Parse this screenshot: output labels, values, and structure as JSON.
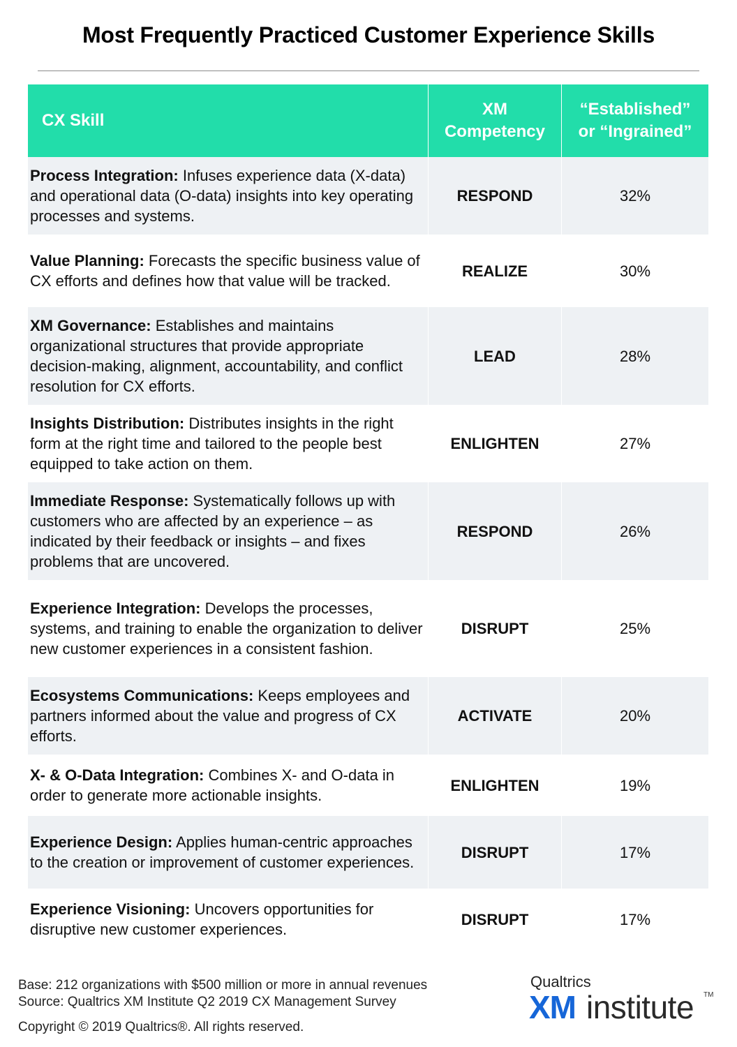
{
  "title": "Most Frequently Practiced Customer Experience Skills",
  "table": {
    "headers": {
      "skill": "CX Skill",
      "competency_line1": "XM",
      "competency_line2": "Competency",
      "established_line1": "“Established”",
      "established_line2": "or “Ingrained”"
    },
    "rows": [
      {
        "name": "Process Integration:",
        "description": " Infuses experience data (X-data) and operational data (O-data) insights into key operating processes and systems.",
        "competency": "RESPOND",
        "percent": "32%"
      },
      {
        "name": "Value Planning:",
        "description": " Forecasts the specific business value of CX efforts and defines how that value will be tracked.",
        "competency": "REALIZE",
        "percent": "30%"
      },
      {
        "name": "XM Governance:",
        "description": " Establishes and maintains organizational structures that provide appropriate decision-making, alignment, accountability, and conflict resolution for CX efforts.",
        "competency": "LEAD",
        "percent": "28%"
      },
      {
        "name": "Insights Distribution:",
        "description": " Distributes insights in the right form at the right time and tailored to the people best equipped to take action on them.",
        "competency": "ENLIGHTEN",
        "percent": "27%"
      },
      {
        "name": "Immediate Response:",
        "description": " Systematically follows up with customers who are affected by an experience – as indicated by their feedback or insights – and fixes problems that are uncovered.",
        "competency": "RESPOND",
        "percent": "26%"
      },
      {
        "name": "Experience Integration:",
        "description": " Develops the processes, systems, and training to enable the organization to deliver new customer experiences in a consistent fashion.",
        "competency": "DISRUPT",
        "percent": "25%"
      },
      {
        "name": "Ecosystems Communications:",
        "description": " Keeps employees and partners informed about the value and progress of CX efforts.",
        "competency": "ACTIVATE",
        "percent": "20%"
      },
      {
        "name": "X- & O-Data Integration:",
        "description": " Combines X- and O-data in order to generate more actionable insights.",
        "competency": "ENLIGHTEN",
        "percent": "19%"
      },
      {
        "name": "Experience Design:",
        "description": " Applies human-centric approaches to the creation or improvement of customer experiences.",
        "competency": "DISRUPT",
        "percent": "17%"
      },
      {
        "name": "Experience Visioning:",
        "description": " Uncovers opportunities for disruptive new customer experiences.",
        "competency": "DISRUPT",
        "percent": "17%"
      }
    ]
  },
  "footer": {
    "base": "Base: 212 organizations with $500 million or more in annual revenues",
    "source": "Source: Qualtrics XM Institute Q2 2019 CX Management Survey",
    "copyright": "Copyright © 2019 Qualtrics®.  All rights reserved."
  },
  "logo": {
    "brand": "Qualtrics",
    "xm": "XM",
    "institute": "institute",
    "tm": "TM"
  },
  "colors": {
    "header_bg": "#22ddaa",
    "row_shade": "#eef1f4",
    "logo_blue": "#1666d8"
  }
}
